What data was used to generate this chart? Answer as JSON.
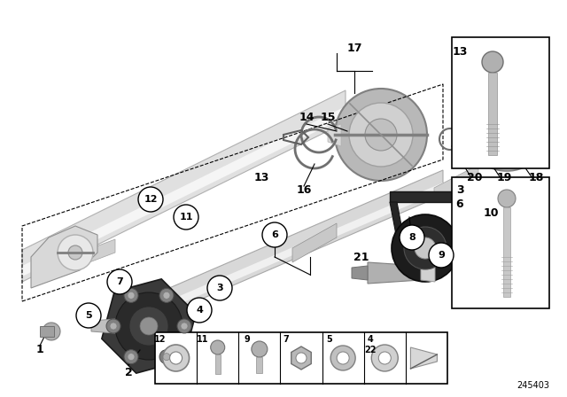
{
  "bg_color": "#ffffff",
  "diagram_id": "245403",
  "shaft_color": "#e8e8e8",
  "shaft_edge": "#a0a0a0",
  "shaft_dark": "#c0c0c0",
  "flange_color": "#404040",
  "bolt_color": "#808080",
  "bearing_color": "#2a2a2a",
  "gray_mid": "#b0b0b0"
}
